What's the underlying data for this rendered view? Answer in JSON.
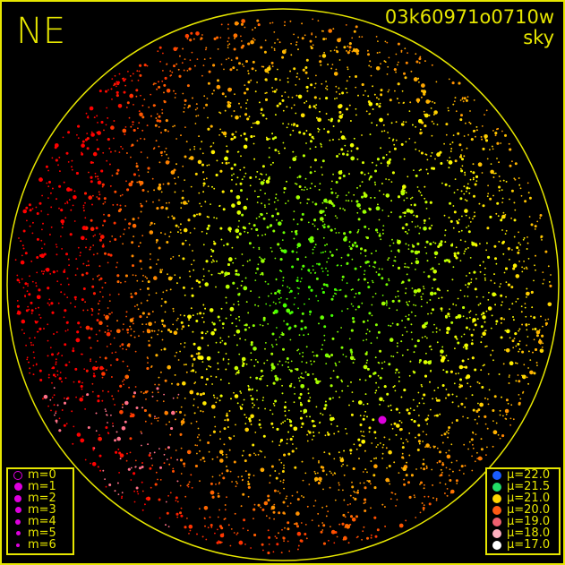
{
  "header": {
    "direction": "NE",
    "camera_id": "03k60971o0710w",
    "mode": "sky"
  },
  "colors": {
    "frame": "#e6e600",
    "background": "#000000"
  },
  "magnitude_legend": [
    {
      "label": "m=0",
      "size": 0,
      "hollow": true
    },
    {
      "label": "m=1",
      "size": 1
    },
    {
      "label": "m=2",
      "size": 2
    },
    {
      "label": "m=3",
      "size": 3
    },
    {
      "label": "m=4",
      "size": 4
    },
    {
      "label": "m=5",
      "size": 5
    },
    {
      "label": "m=6",
      "size": 6
    }
  ],
  "magnitude_color": "#dd00dd",
  "brightness_legend": [
    {
      "label": "μ=22.0",
      "color": "#1a5cff"
    },
    {
      "label": "μ=21.5",
      "color": "#22dd66"
    },
    {
      "label": "μ=21.0",
      "color": "#ffd400"
    },
    {
      "label": "μ=20.0",
      "color": "#ff5a14"
    },
    {
      "label": "μ=19.0",
      "color": "#f06070"
    },
    {
      "label": "μ=18.0",
      "color": "#ffb0c0"
    },
    {
      "label": "μ=17.0",
      "color": "#ffffff"
    }
  ]
}
